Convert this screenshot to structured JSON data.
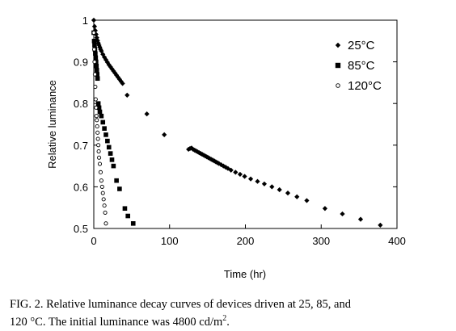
{
  "chart_data": {
    "type": "scatter",
    "title": "",
    "xlabel": "Time (hr)",
    "ylabel": "Relative luminance",
    "xlim": [
      0,
      400
    ],
    "ylim": [
      0.5,
      1.0
    ],
    "xticks": [
      "0",
      "100",
      "200",
      "300",
      "400"
    ],
    "yticks": [
      "0.5",
      "0.6",
      "0.7",
      "0.8",
      "0.9",
      "1"
    ],
    "grid": false,
    "legend_position": "top-right",
    "series": [
      {
        "name": "25°C",
        "marker": "diamond",
        "x": [
          0,
          1,
          2,
          3,
          4,
          5,
          6,
          7,
          8,
          9,
          10,
          12,
          14,
          16,
          18,
          20,
          22,
          24,
          26,
          28,
          30,
          32,
          34,
          36,
          38,
          44,
          70,
          93,
          125,
          127,
          129,
          131,
          133,
          135,
          137,
          139,
          141,
          143,
          145,
          147,
          149,
          151,
          153,
          155,
          157,
          159,
          161,
          163,
          165,
          168,
          171,
          174,
          177,
          181,
          187,
          193,
          199,
          207,
          216,
          225,
          235,
          245,
          256,
          268,
          281,
          305,
          328,
          352,
          378
        ],
        "y": [
          1.0,
          0.985,
          0.975,
          0.966,
          0.958,
          0.951,
          0.945,
          0.94,
          0.935,
          0.93,
          0.926,
          0.918,
          0.911,
          0.905,
          0.899,
          0.893,
          0.888,
          0.883,
          0.878,
          0.873,
          0.868,
          0.863,
          0.858,
          0.853,
          0.848,
          0.82,
          0.775,
          0.725,
          0.69,
          0.692,
          0.693,
          0.69,
          0.688,
          0.686,
          0.684,
          0.682,
          0.68,
          0.678,
          0.676,
          0.674,
          0.672,
          0.67,
          0.668,
          0.666,
          0.664,
          0.662,
          0.66,
          0.658,
          0.656,
          0.653,
          0.65,
          0.647,
          0.644,
          0.64,
          0.635,
          0.63,
          0.625,
          0.619,
          0.613,
          0.607,
          0.6,
          0.593,
          0.585,
          0.576,
          0.567,
          0.548,
          0.535,
          0.522,
          0.508
        ]
      },
      {
        "name": "85°C",
        "marker": "square",
        "x": [
          0,
          0.5,
          1,
          1.5,
          2,
          2.5,
          3,
          3.5,
          4,
          4.5,
          5,
          6,
          7,
          8,
          10,
          12,
          14,
          16,
          18,
          20,
          22,
          24,
          26,
          30,
          34,
          41,
          45,
          52
        ],
        "y": [
          0.97,
          0.95,
          0.94,
          0.93,
          0.92,
          0.91,
          0.9,
          0.89,
          0.88,
          0.87,
          0.86,
          0.8,
          0.79,
          0.78,
          0.77,
          0.755,
          0.74,
          0.725,
          0.71,
          0.695,
          0.68,
          0.665,
          0.65,
          0.615,
          0.595,
          0.548,
          0.53,
          0.512
        ]
      },
      {
        "name": "120°C",
        "marker": "circle",
        "x": [
          0,
          0.5,
          1,
          1.5,
          2,
          2.5,
          3,
          3.5,
          4,
          4.5,
          5,
          5.5,
          6,
          6.5,
          7,
          8,
          9,
          10,
          11,
          12,
          13,
          14,
          15,
          16
        ],
        "y": [
          0.97,
          0.93,
          0.9,
          0.87,
          0.84,
          0.81,
          0.79,
          0.77,
          0.76,
          0.745,
          0.73,
          0.715,
          0.7,
          0.685,
          0.67,
          0.655,
          0.635,
          0.615,
          0.6,
          0.585,
          0.57,
          0.555,
          0.538,
          0.512
        ]
      }
    ]
  },
  "caption": {
    "line1": "FIG. 2. Relative luminance decay curves of devices driven at 25, 85, and",
    "line2_prefix": "120 °C. The initial luminance was 4800 cd/m",
    "line2_sup": "2",
    "line2_suffix": "."
  }
}
